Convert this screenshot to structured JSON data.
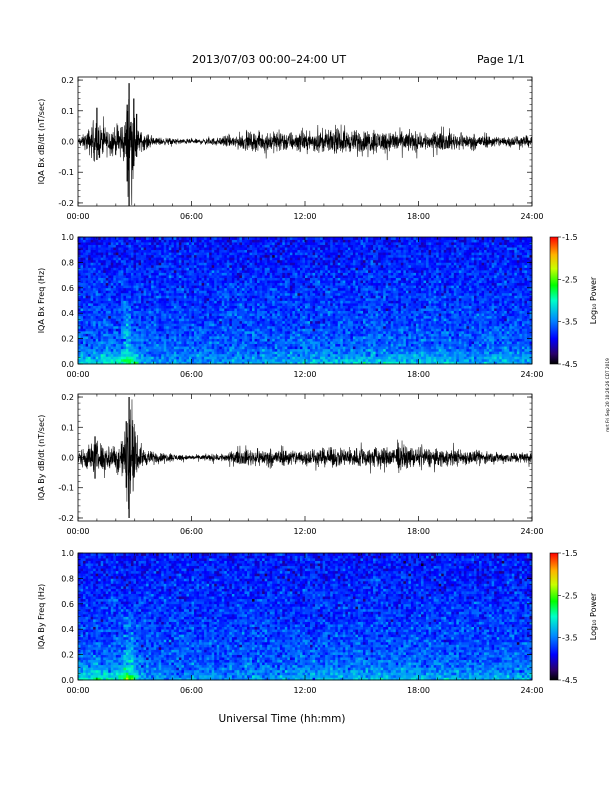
{
  "header": {
    "title": "2013/07/03  00:00–24:00 UT",
    "page": "Page 1/1"
  },
  "side_stamp": "mrt Fri Sep 20 10:26:26 CDT 2019",
  "chart_data": [
    {
      "type": "line",
      "ylabel": "IQA Bx dB/dt (nT/sec)",
      "xlabel": "",
      "xlim": [
        "00:00",
        "24:00"
      ],
      "x_ticks": [
        "00:00",
        "06:00",
        "12:00",
        "18:00",
        "24:00"
      ],
      "ylim": [
        -0.21,
        0.21
      ],
      "y_ticks": [
        "-0.2",
        "-0.1",
        "0.0",
        "0.1",
        "0.2"
      ],
      "envelope": [
        {
          "t": 0.0,
          "amp": 0.012
        },
        {
          "t": 0.4,
          "amp": 0.03
        },
        {
          "t": 0.7,
          "amp": 0.06
        },
        {
          "t": 1.0,
          "amp": 0.07
        },
        {
          "t": 1.5,
          "amp": 0.05
        },
        {
          "t": 2.0,
          "amp": 0.05
        },
        {
          "t": 2.5,
          "amp": 0.09
        },
        {
          "t": 2.7,
          "amp": 0.19
        },
        {
          "t": 2.9,
          "amp": 0.12
        },
        {
          "t": 3.2,
          "amp": 0.04
        },
        {
          "t": 4.0,
          "amp": 0.015
        },
        {
          "t": 6.0,
          "amp": 0.008
        },
        {
          "t": 7.5,
          "amp": 0.015
        },
        {
          "t": 8.5,
          "amp": 0.03
        },
        {
          "t": 10.0,
          "amp": 0.035
        },
        {
          "t": 12.0,
          "amp": 0.035
        },
        {
          "t": 14.0,
          "amp": 0.04
        },
        {
          "t": 16.0,
          "amp": 0.04
        },
        {
          "t": 18.0,
          "amp": 0.035
        },
        {
          "t": 20.0,
          "amp": 0.03
        },
        {
          "t": 22.0,
          "amp": 0.02
        },
        {
          "t": 24.0,
          "amp": 0.02
        }
      ],
      "spikes": [
        {
          "t": 2.7,
          "min": -0.21,
          "max": 0.19
        },
        {
          "t": 2.6,
          "min": -0.13,
          "max": 0.12
        },
        {
          "t": 1.0,
          "min": -0.06,
          "max": 0.11
        },
        {
          "t": 2.95,
          "min": -0.08,
          "max": 0.14
        },
        {
          "t": 3.1,
          "min": -0.05,
          "max": 0.09
        }
      ]
    },
    {
      "type": "heatmap",
      "ylabel": "IQA Bx Freq (Hz)",
      "xlabel": "",
      "xlim": [
        "00:00",
        "24:00"
      ],
      "x_ticks": [
        "00:00",
        "06:00",
        "12:00",
        "18:00",
        "24:00"
      ],
      "ylim": [
        0.0,
        1.0
      ],
      "y_ticks": [
        "0.0",
        "0.2",
        "0.4",
        "0.6",
        "0.8",
        "1.0"
      ],
      "colorbar": {
        "label": "Log₁₀ Power",
        "range": [
          -4.5,
          -1.5
        ],
        "ticks": [
          "-1.5",
          "-2.5",
          "-3.5",
          "-4.5"
        ]
      },
      "activity": [
        {
          "t": 0.0,
          "level": 0.35
        },
        {
          "t": 1.0,
          "level": 0.55
        },
        {
          "t": 2.0,
          "level": 0.5
        },
        {
          "t": 2.6,
          "level": 0.9
        },
        {
          "t": 3.0,
          "level": 0.7
        },
        {
          "t": 3.5,
          "level": 0.2
        },
        {
          "t": 8.0,
          "level": 0.2
        },
        {
          "t": 12.0,
          "level": 0.35
        },
        {
          "t": 16.0,
          "level": 0.45
        },
        {
          "t": 20.0,
          "level": 0.35
        },
        {
          "t": 24.0,
          "level": 0.25
        }
      ]
    },
    {
      "type": "line",
      "ylabel": "IQA By dB/dt (nT/sec)",
      "xlabel": "",
      "xlim": [
        "00:00",
        "24:00"
      ],
      "x_ticks": [
        "00:00",
        "06:00",
        "12:00",
        "18:00",
        "24:00"
      ],
      "ylim": [
        -0.21,
        0.21
      ],
      "y_ticks": [
        "-0.2",
        "-0.1",
        "0.0",
        "0.1",
        "0.2"
      ],
      "envelope": [
        {
          "t": 0.0,
          "amp": 0.02
        },
        {
          "t": 0.5,
          "amp": 0.05
        },
        {
          "t": 1.0,
          "amp": 0.06
        },
        {
          "t": 1.5,
          "amp": 0.05
        },
        {
          "t": 2.0,
          "amp": 0.05
        },
        {
          "t": 2.5,
          "amp": 0.1
        },
        {
          "t": 2.7,
          "amp": 0.2
        },
        {
          "t": 2.9,
          "amp": 0.12
        },
        {
          "t": 3.2,
          "amp": 0.04
        },
        {
          "t": 4.0,
          "amp": 0.02
        },
        {
          "t": 6.0,
          "amp": 0.008
        },
        {
          "t": 7.5,
          "amp": 0.015
        },
        {
          "t": 9.0,
          "amp": 0.03
        },
        {
          "t": 12.0,
          "amp": 0.03
        },
        {
          "t": 14.0,
          "amp": 0.035
        },
        {
          "t": 16.0,
          "amp": 0.04
        },
        {
          "t": 18.0,
          "amp": 0.035
        },
        {
          "t": 20.0,
          "amp": 0.03
        },
        {
          "t": 22.0,
          "amp": 0.02
        },
        {
          "t": 24.0,
          "amp": 0.02
        }
      ],
      "spikes": [
        {
          "t": 2.7,
          "min": -0.2,
          "max": 0.2
        },
        {
          "t": 2.55,
          "min": -0.1,
          "max": 0.12
        },
        {
          "t": 0.9,
          "min": -0.07,
          "max": 0.07
        },
        {
          "t": 2.9,
          "min": -0.06,
          "max": 0.1
        }
      ]
    },
    {
      "type": "heatmap",
      "ylabel": "IQA By Freq (Hz)",
      "xlabel": "Universal Time (hh:mm)",
      "xlim": [
        "00:00",
        "24:00"
      ],
      "x_ticks": [
        "00:00",
        "06:00",
        "12:00",
        "18:00",
        "24:00"
      ],
      "ylim": [
        0.0,
        1.0
      ],
      "y_ticks": [
        "0.0",
        "0.2",
        "0.4",
        "0.6",
        "0.8",
        "1.0"
      ],
      "colorbar": {
        "label": "Log₁₀ Power",
        "range": [
          -4.5,
          -1.5
        ],
        "ticks": [
          "-1.5",
          "-2.5",
          "-3.5",
          "-4.5"
        ]
      },
      "activity": [
        {
          "t": 0.0,
          "level": 0.45
        },
        {
          "t": 1.0,
          "level": 0.65
        },
        {
          "t": 2.0,
          "level": 0.6
        },
        {
          "t": 2.6,
          "level": 0.95
        },
        {
          "t": 3.0,
          "level": 0.75
        },
        {
          "t": 3.5,
          "level": 0.2
        },
        {
          "t": 8.0,
          "level": 0.2
        },
        {
          "t": 12.0,
          "level": 0.3
        },
        {
          "t": 16.0,
          "level": 0.35
        },
        {
          "t": 20.0,
          "level": 0.3
        },
        {
          "t": 24.0,
          "level": 0.25
        }
      ]
    }
  ]
}
